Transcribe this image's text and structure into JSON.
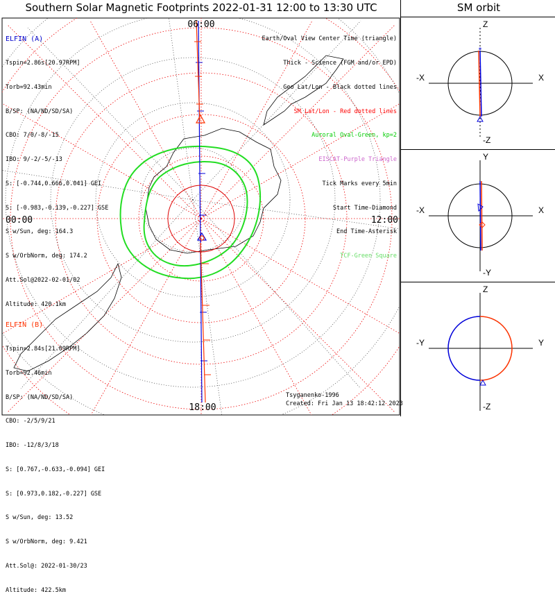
{
  "title": "Southern Solar Magnetic Footprints 2022-01-31 12:00 to 13:30 UTC",
  "orbit_title": "SM orbit",
  "map": {
    "lt_labels": {
      "top": "06:00",
      "left": "00:00",
      "right": "12:00",
      "bottom": "18:00"
    }
  },
  "elfin_a": {
    "name": "ELFIN (A)",
    "color": "#0000cc",
    "lines": [
      "Tspin=2.86s[20.97RPM]",
      "Torb=92.43min",
      "B/SP: (NA/ND/SD/SA)",
      "CBO: 7/0/-8/-15",
      "IBO: 9/-2/-5/-13",
      "S: [-0.744,0.666,0.041] GEI",
      "S: [-0.983,-0.139,-0.227] GSE",
      "S w/Sun, deg: 164.3",
      "S w/OrbNorm, deg: 174.2",
      "Att.Sol@2022-02-01/02",
      "Altitude: 420.1km"
    ]
  },
  "elfin_b": {
    "name": "ELFIN (B)",
    "color": "#ff3300",
    "lines": [
      "Tspin=2.84s[21.09RPM]",
      "Torb=92.46min",
      "B/SP: (NA/ND/SD/SA)",
      "CBO: -2/5/9/21",
      "IBO: -12/8/3/18",
      "S: [0.767,-0.633,-0.094] GEI",
      "S: [0.973,0.182,-0.227] GSE",
      "S w/Sun, deg: 13.52",
      "S w/OrbNorm, deg: 9.421",
      "Att.Sol@: 2022-01-30/23",
      "Altitude: 422.5km"
    ]
  },
  "legend": [
    {
      "text": "Earth/Oval View Center Time (triangle)",
      "color": "#000000"
    },
    {
      "text": "Thick - Science (FGM and/or EPD)",
      "color": "#000000"
    },
    {
      "text": "Geo Lat/Lon - Black dotted lines",
      "color": "#000000"
    },
    {
      "text": "SM Lat/Lon - Red dotted lines",
      "color": "#ff0000"
    },
    {
      "text": "Auroral Oval-Green, kp=2",
      "color": "#00cc00"
    },
    {
      "text": "EISCAT-Purple Triangle",
      "color": "#cc66cc"
    },
    {
      "text": "Tick Marks every 5min",
      "color": "#000000"
    },
    {
      "text": "Start Time-Diamond",
      "color": "#000000"
    },
    {
      "text": "End Time-Asterisk",
      "color": "#000000"
    },
    {
      "text": "TCF-Green Square",
      "color": "#66dd66"
    }
  ],
  "footer": {
    "credit": "Tsyganenko-1996",
    "created": "Created: Fri Jan 13 18:42:12 2023"
  },
  "orbit_panels": [
    {
      "top": "Z",
      "bottom": "-Z",
      "left": "-X",
      "right": "X"
    },
    {
      "top": "Y",
      "bottom": "-Y",
      "left": "-X",
      "right": "X"
    },
    {
      "top": "Z",
      "bottom": "-Z",
      "left": "-Y",
      "right": "Y"
    }
  ]
}
